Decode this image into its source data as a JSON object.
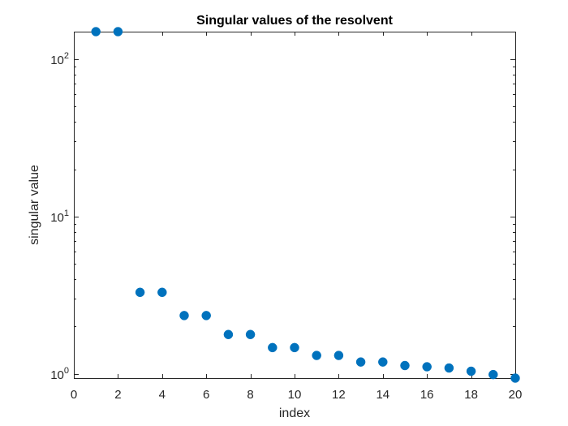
{
  "chart_data": {
    "type": "scatter",
    "title": "Singular values of the resolvent",
    "xlabel": "index",
    "ylabel": "singular value",
    "x_scale": "linear",
    "y_scale": "log",
    "xlim": [
      0,
      20
    ],
    "ylim": [
      0.94,
      150
    ],
    "grid": false,
    "legend": "none",
    "marker_color": "#0072BD",
    "xticks": [
      0,
      2,
      4,
      6,
      8,
      10,
      12,
      14,
      16,
      18,
      20
    ],
    "xtick_labels": [
      "0",
      "2",
      "4",
      "6",
      "8",
      "10",
      "12",
      "14",
      "16",
      "18",
      "20"
    ],
    "yticks_major": [
      {
        "value": 1,
        "base": "10",
        "exp": "0"
      },
      {
        "value": 10,
        "base": "10",
        "exp": "1"
      },
      {
        "value": 100,
        "base": "10",
        "exp": "2"
      }
    ],
    "series": [
      {
        "x": [
          1,
          2,
          3,
          4,
          5,
          6,
          7,
          8,
          9,
          10,
          11,
          12,
          13,
          14,
          15,
          16,
          17,
          18,
          19,
          20
        ],
        "y": [
          150,
          150,
          3.3,
          3.3,
          2.35,
          2.35,
          1.78,
          1.78,
          1.47,
          1.47,
          1.31,
          1.31,
          1.19,
          1.19,
          1.13,
          1.11,
          1.09,
          1.04,
          0.99,
          0.94
        ]
      }
    ]
  }
}
